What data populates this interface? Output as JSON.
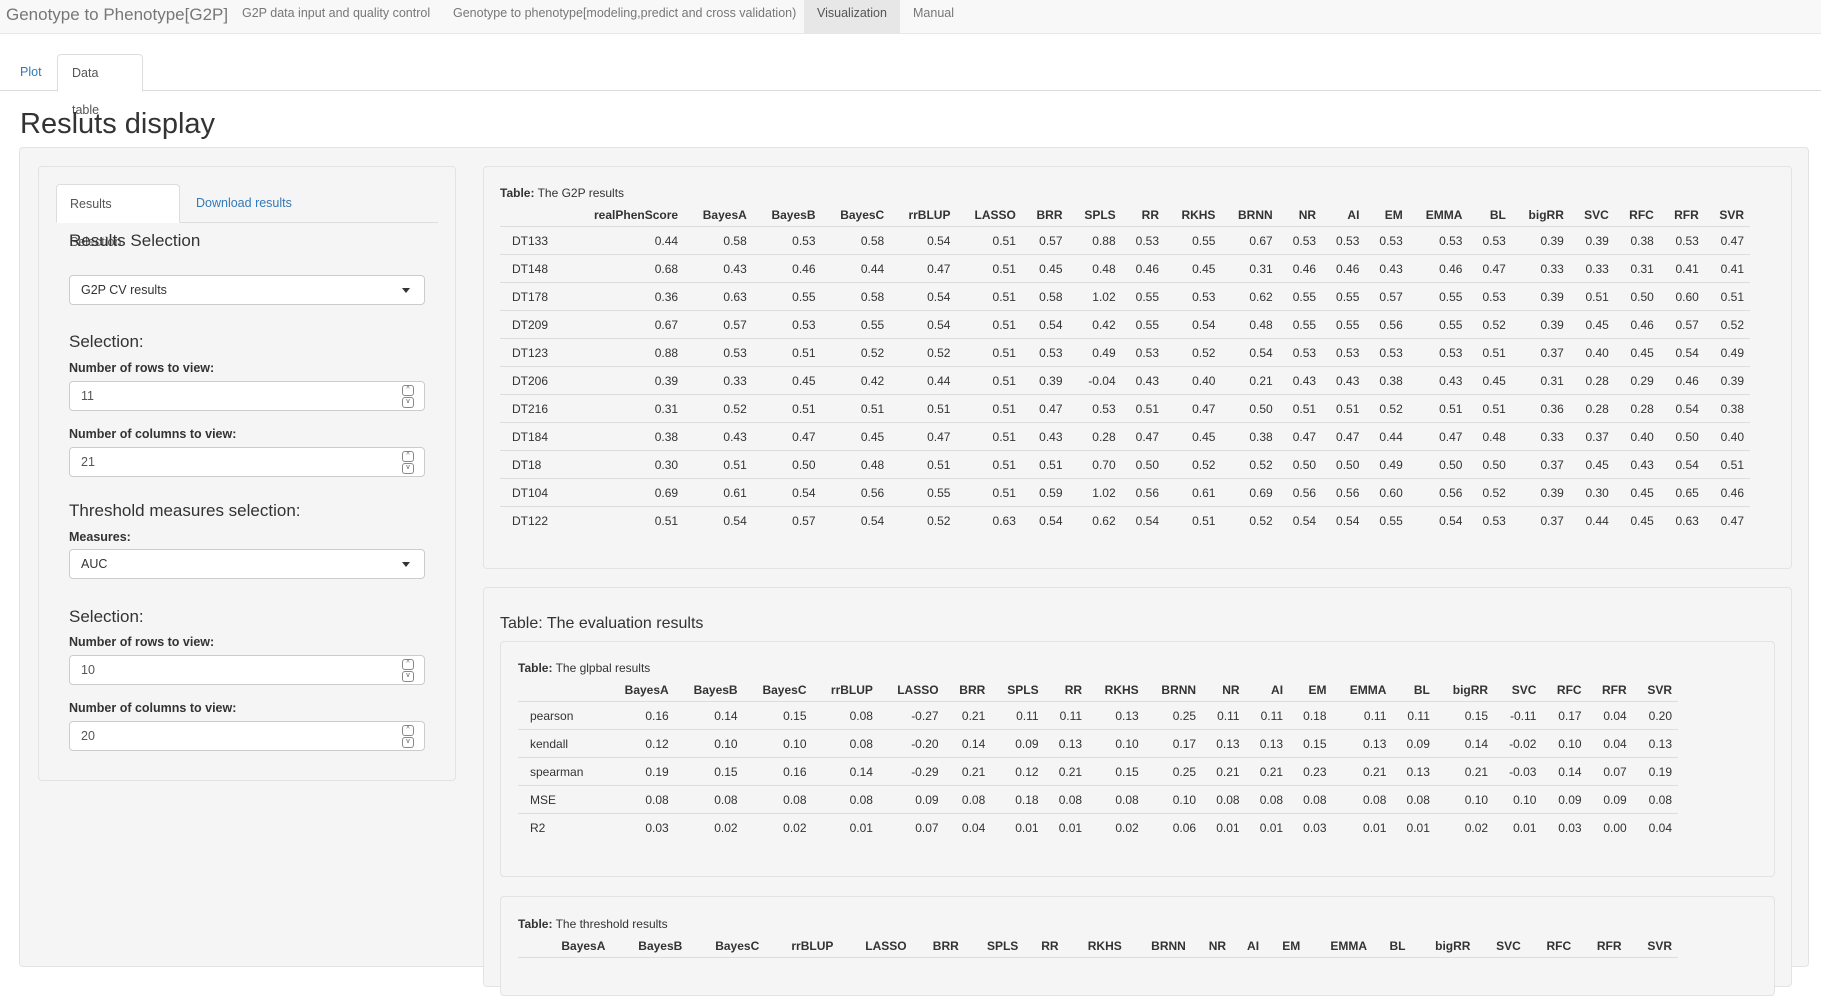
{
  "navbar": {
    "brand": "Genotype to Phenotype[G2P]",
    "items": [
      {
        "label": "G2P data input and quality control"
      },
      {
        "label": "Genotype to phenotype[modeling,predict and cross validation)"
      },
      {
        "label": "Visualization"
      },
      {
        "label": "Manual"
      }
    ]
  },
  "top_tabs": [
    {
      "label": "Plot"
    },
    {
      "label": "Data table"
    }
  ],
  "page_title": "Resluts display",
  "sidebar": {
    "tabs": [
      {
        "label": "Results Selection"
      },
      {
        "label": "Download results"
      }
    ],
    "heading": "Results Selection",
    "results_select": "G2P CV results",
    "selection1": "Selection:",
    "rows_label1": "Number of rows to view:",
    "rows_value1": "11",
    "cols_label1": "Number of columns to view:",
    "cols_value1": "21",
    "threshold_heading": "Threshold measures selection:",
    "measures_label": "Measures:",
    "measures_value": "AUC",
    "selection2": "Selection:",
    "rows_label2": "Number of rows to view:",
    "rows_value2": "10",
    "cols_label2": "Number of columns to view:",
    "cols_value2": "20",
    "spin_up": "^",
    "spin_down": "v"
  },
  "g2p_table": {
    "caption_bold": "Table:",
    "caption": " The G2P results",
    "columns": [
      "",
      "realPhenScore",
      "BayesA",
      "BayesB",
      "BayesC",
      "rrBLUP",
      "LASSO",
      "BRR",
      "SPLS",
      "RR",
      "RKHS",
      "BRNN",
      "NR",
      "AI",
      "EM",
      "EMMA",
      "BL",
      "bigRR",
      "SVC",
      "RFC",
      "RFR",
      "SVR"
    ],
    "rows": [
      [
        "DT133",
        "0.44",
        "0.58",
        "0.53",
        "0.58",
        "0.54",
        "0.51",
        "0.57",
        "0.88",
        "0.53",
        "0.55",
        "0.67",
        "0.53",
        "0.53",
        "0.53",
        "0.53",
        "0.53",
        "0.39",
        "0.39",
        "0.38",
        "0.53",
        "0.47"
      ],
      [
        "DT148",
        "0.68",
        "0.43",
        "0.46",
        "0.44",
        "0.47",
        "0.51",
        "0.45",
        "0.48",
        "0.46",
        "0.45",
        "0.31",
        "0.46",
        "0.46",
        "0.43",
        "0.46",
        "0.47",
        "0.33",
        "0.33",
        "0.31",
        "0.41",
        "0.41"
      ],
      [
        "DT178",
        "0.36",
        "0.63",
        "0.55",
        "0.58",
        "0.54",
        "0.51",
        "0.58",
        "1.02",
        "0.55",
        "0.53",
        "0.62",
        "0.55",
        "0.55",
        "0.57",
        "0.55",
        "0.53",
        "0.39",
        "0.51",
        "0.50",
        "0.60",
        "0.51"
      ],
      [
        "DT209",
        "0.67",
        "0.57",
        "0.53",
        "0.55",
        "0.54",
        "0.51",
        "0.54",
        "0.42",
        "0.55",
        "0.54",
        "0.48",
        "0.55",
        "0.55",
        "0.56",
        "0.55",
        "0.52",
        "0.39",
        "0.45",
        "0.46",
        "0.57",
        "0.52"
      ],
      [
        "DT123",
        "0.88",
        "0.53",
        "0.51",
        "0.52",
        "0.52",
        "0.51",
        "0.53",
        "0.49",
        "0.53",
        "0.52",
        "0.54",
        "0.53",
        "0.53",
        "0.53",
        "0.53",
        "0.51",
        "0.37",
        "0.40",
        "0.45",
        "0.54",
        "0.49"
      ],
      [
        "DT206",
        "0.39",
        "0.33",
        "0.45",
        "0.42",
        "0.44",
        "0.51",
        "0.39",
        "-0.04",
        "0.43",
        "0.40",
        "0.21",
        "0.43",
        "0.43",
        "0.38",
        "0.43",
        "0.45",
        "0.31",
        "0.28",
        "0.29",
        "0.46",
        "0.39"
      ],
      [
        "DT216",
        "0.31",
        "0.52",
        "0.51",
        "0.51",
        "0.51",
        "0.51",
        "0.47",
        "0.53",
        "0.51",
        "0.47",
        "0.50",
        "0.51",
        "0.51",
        "0.52",
        "0.51",
        "0.51",
        "0.36",
        "0.28",
        "0.28",
        "0.54",
        "0.38"
      ],
      [
        "DT184",
        "0.38",
        "0.43",
        "0.47",
        "0.45",
        "0.47",
        "0.51",
        "0.43",
        "0.28",
        "0.47",
        "0.45",
        "0.38",
        "0.47",
        "0.47",
        "0.44",
        "0.47",
        "0.48",
        "0.33",
        "0.37",
        "0.40",
        "0.50",
        "0.40"
      ],
      [
        "DT18",
        "0.30",
        "0.51",
        "0.50",
        "0.48",
        "0.51",
        "0.51",
        "0.51",
        "0.70",
        "0.50",
        "0.52",
        "0.52",
        "0.50",
        "0.50",
        "0.49",
        "0.50",
        "0.50",
        "0.37",
        "0.45",
        "0.43",
        "0.54",
        "0.51"
      ],
      [
        "DT104",
        "0.69",
        "0.61",
        "0.54",
        "0.56",
        "0.55",
        "0.51",
        "0.59",
        "1.02",
        "0.56",
        "0.61",
        "0.69",
        "0.56",
        "0.56",
        "0.60",
        "0.56",
        "0.52",
        "0.39",
        "0.30",
        "0.45",
        "0.65",
        "0.46"
      ],
      [
        "DT122",
        "0.51",
        "0.54",
        "0.57",
        "0.54",
        "0.52",
        "0.63",
        "0.54",
        "0.62",
        "0.54",
        "0.51",
        "0.52",
        "0.54",
        "0.54",
        "0.55",
        "0.54",
        "0.53",
        "0.37",
        "0.44",
        "0.45",
        "0.63",
        "0.47"
      ]
    ]
  },
  "evaluation": {
    "heading": "Table: The evaluation results",
    "global_caption_bold": "Table:",
    "global_caption": " The glpbal results",
    "global_columns": [
      "",
      "BayesA",
      "BayesB",
      "BayesC",
      "rrBLUP",
      "LASSO",
      "BRR",
      "SPLS",
      "RR",
      "RKHS",
      "BRNN",
      "NR",
      "AI",
      "EM",
      "EMMA",
      "BL",
      "bigRR",
      "SVC",
      "RFC",
      "RFR",
      "SVR"
    ],
    "global_rows": [
      [
        "pearson",
        "0.16",
        "0.14",
        "0.15",
        "0.08",
        "-0.27",
        "0.21",
        "0.11",
        "0.11",
        "0.13",
        "0.25",
        "0.11",
        "0.11",
        "0.18",
        "0.11",
        "0.11",
        "0.15",
        "-0.11",
        "0.17",
        "0.04",
        "0.20"
      ],
      [
        "kendall",
        "0.12",
        "0.10",
        "0.10",
        "0.08",
        "-0.20",
        "0.14",
        "0.09",
        "0.13",
        "0.10",
        "0.17",
        "0.13",
        "0.13",
        "0.15",
        "0.13",
        "0.09",
        "0.14",
        "-0.02",
        "0.10",
        "0.04",
        "0.13"
      ],
      [
        "spearman",
        "0.19",
        "0.15",
        "0.16",
        "0.14",
        "-0.29",
        "0.21",
        "0.12",
        "0.21",
        "0.15",
        "0.25",
        "0.21",
        "0.21",
        "0.23",
        "0.21",
        "0.13",
        "0.21",
        "-0.03",
        "0.14",
        "0.07",
        "0.19"
      ],
      [
        "MSE",
        "0.08",
        "0.08",
        "0.08",
        "0.08",
        "0.09",
        "0.08",
        "0.18",
        "0.08",
        "0.08",
        "0.10",
        "0.08",
        "0.08",
        "0.08",
        "0.08",
        "0.08",
        "0.10",
        "0.10",
        "0.09",
        "0.09",
        "0.08"
      ],
      [
        "R2",
        "0.03",
        "0.02",
        "0.02",
        "0.01",
        "0.07",
        "0.04",
        "0.01",
        "0.01",
        "0.02",
        "0.06",
        "0.01",
        "0.01",
        "0.03",
        "0.01",
        "0.01",
        "0.02",
        "0.01",
        "0.03",
        "0.00",
        "0.04"
      ]
    ],
    "threshold_caption_bold": "Table:",
    "threshold_caption": " The threshold results",
    "threshold_columns": [
      "",
      "BayesA",
      "BayesB",
      "BayesC",
      "rrBLUP",
      "LASSO",
      "BRR",
      "SPLS",
      "RR",
      "RKHS",
      "BRNN",
      "NR",
      "AI",
      "EM",
      "EMMA",
      "BL",
      "bigRR",
      "SVC",
      "RFC",
      "RFR",
      "SVR"
    ]
  }
}
